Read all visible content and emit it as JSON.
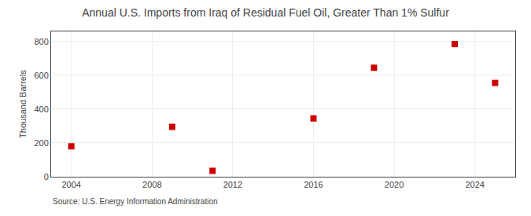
{
  "chart_data": {
    "type": "scatter",
    "title": "Annual U.S. Imports from Iraq of Residual Fuel Oil, Greater Than 1% Sulfur",
    "y_label": "Thousand Barrels",
    "annotations": [
      "Source: U.S. Energy Information Administration"
    ],
    "x": [
      2004,
      2009,
      2011,
      2016,
      2019,
      2023,
      2025
    ],
    "values": [
      180,
      295,
      35,
      345,
      645,
      785,
      555
    ],
    "xlim": [
      2003,
      2026
    ],
    "xticks": [
      2004,
      2008,
      2012,
      2016,
      2020,
      2024
    ],
    "ylim": [
      0,
      860
    ],
    "yticks": [
      0,
      200,
      400,
      600,
      800
    ],
    "color": "#cc0000",
    "marker": "square",
    "grid": true
  }
}
